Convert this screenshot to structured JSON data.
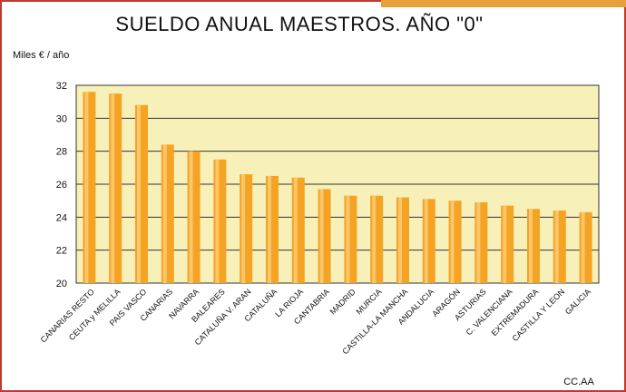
{
  "chart_data": {
    "type": "bar",
    "title": "SUELDO ANUAL MAESTROS. AÑO \"0\"",
    "ylabel": "Miles € / año",
    "xlabel": "CC.AA",
    "ylim": [
      20,
      32
    ],
    "yticks": [
      "20",
      "22",
      "24",
      "26",
      "28",
      "30",
      "32"
    ],
    "grid": true,
    "categories": [
      "CANARIAS RESTO",
      "CEUTA y MELILLA",
      "PAIS VASCO",
      "CANARIAS",
      "NAVARRA",
      "BALEARES",
      "CATALUÑA V. ARAN",
      "CATALUÑA",
      "LA RIOJA",
      "CANTABRIA",
      "MADRID",
      "MURCIA",
      "CASTILLA-LA MANCHA",
      "ANDALUCIA",
      "ARAGÓN",
      "ASTURIAS",
      "C. VALENCIANA",
      "EXTREMADURA",
      "CASTILLA Y LEON",
      "GALICIA"
    ],
    "values": [
      31.6,
      31.5,
      30.8,
      28.4,
      28.0,
      27.5,
      26.6,
      26.5,
      26.4,
      25.7,
      25.3,
      25.3,
      25.2,
      25.1,
      25.0,
      24.9,
      24.7,
      24.5,
      24.4,
      24.3
    ],
    "colors": {
      "bar": "#f5a323",
      "bar_highlight": "#fbc56a",
      "plot_bg": "#f7f0b8",
      "grid": "#333333",
      "frame": "#c0392b",
      "stripe": "#e8a03a"
    }
  }
}
